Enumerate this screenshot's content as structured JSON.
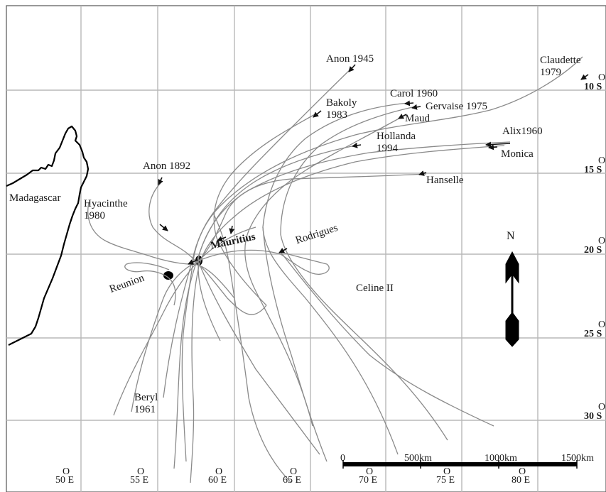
{
  "map": {
    "longitude_labels": [
      "50 E",
      "55 E",
      "60 E",
      "65 E",
      "70 E",
      "75 E",
      "80 E"
    ],
    "degree_symbol": "O",
    "latitude_labels": [
      "10 S",
      "15 S",
      "20 S",
      "25 S",
      "30 S"
    ],
    "places": {
      "madagascar": "Madagascar",
      "mauritius": "Mauritius",
      "reunion": "Reunion",
      "rodrigues": "Rodrigues"
    },
    "cyclones": {
      "anon_1945": "Anon 1945",
      "claudette_1979": "Claudette\n1979",
      "bakoly_1983": "Bakoly\n1983",
      "carol_1960": "Carol 1960",
      "gervaise_1975": "Gervaise 1975",
      "maud": "Maud",
      "hollanda_1994": "Hollanda\n1994",
      "alix_1960": "Alix1960",
      "monica": "Monica",
      "anon_1892": "Anon 1892",
      "hanselle": "Hanselle",
      "hyacinthe_1980": "Hyacinthe\n1980",
      "celine_ii": "Celine II",
      "beryl_1961": "Beryl\n1961"
    },
    "north_label": "N",
    "scale_labels": [
      "0",
      "500km",
      "1000km",
      "1500km"
    ],
    "colors": {
      "grid": "#b8b8b8",
      "track": "#8a8a8a",
      "coast": "#000000",
      "ink": "#1a1a1a"
    }
  }
}
